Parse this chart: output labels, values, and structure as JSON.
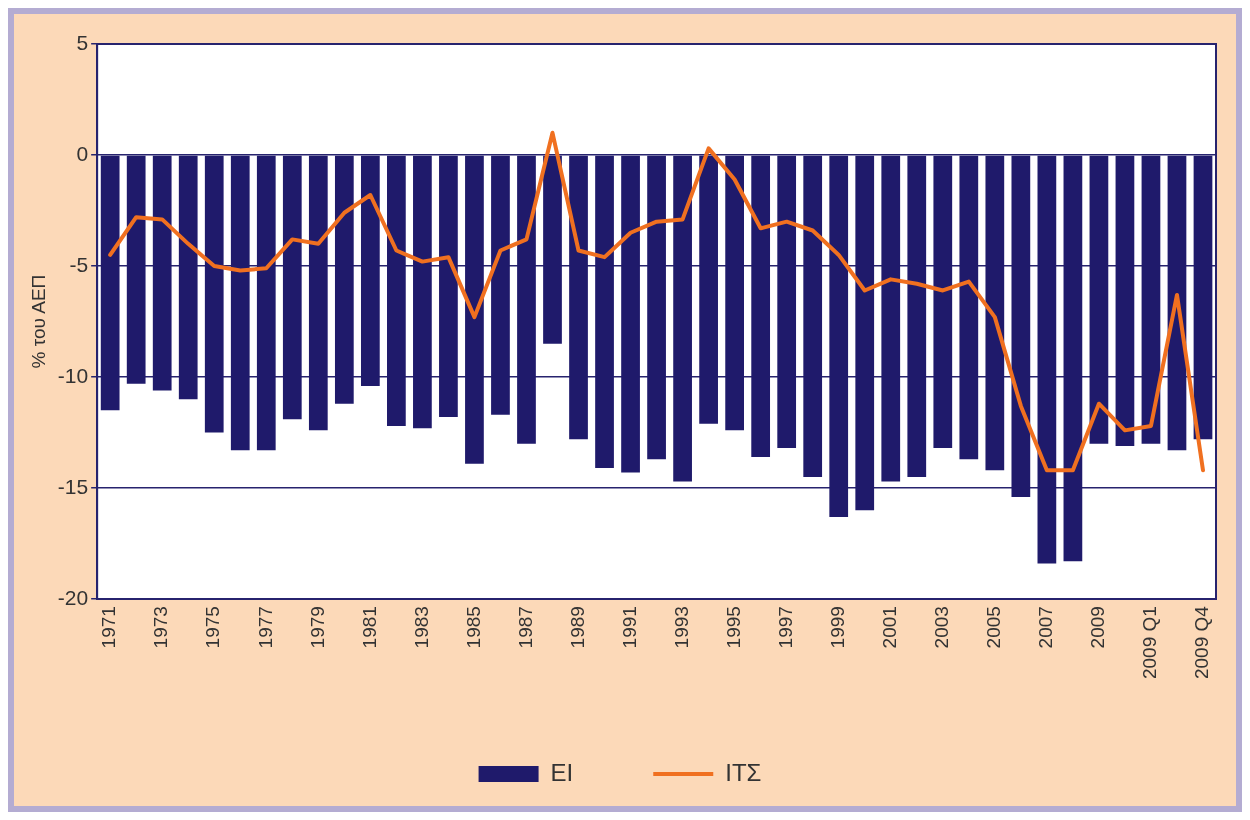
{
  "chart_data": {
    "type": "bar",
    "ylabel": "% του ΑΕΠ",
    "categories": [
      "1971",
      null,
      "1973",
      null,
      "1975",
      null,
      "1977",
      null,
      "1979",
      null,
      "1981",
      null,
      "1983",
      null,
      "1985",
      null,
      "1987",
      null,
      "1989",
      null,
      "1991",
      null,
      "1993",
      null,
      "1995",
      null,
      "1997",
      null,
      "1999",
      null,
      "2001",
      null,
      "2003",
      null,
      "2005",
      null,
      "2007",
      null,
      "2009",
      null,
      "2009 Q1",
      null,
      "2009 Q4"
    ],
    "series": [
      {
        "name": "ΕΙ",
        "color": "#1f1a6b",
        "values": [
          -11.5,
          -10.3,
          -10.6,
          -11.0,
          -12.5,
          -13.3,
          -13.3,
          -11.9,
          -12.4,
          -11.2,
          -10.4,
          -12.2,
          -12.3,
          -11.8,
          -13.9,
          -11.7,
          -13.0,
          -8.5,
          -12.8,
          -14.1,
          -14.3,
          -13.7,
          -14.7,
          -12.1,
          -12.4,
          -13.6,
          -13.2,
          -14.5,
          -16.3,
          -16.0,
          -14.7,
          -14.5,
          -13.2,
          -13.7,
          -14.2,
          -15.4,
          -18.4,
          -18.3,
          -13.0,
          -13.1,
          -13.0,
          -13.3,
          -12.8
        ]
      },
      {
        "name": "ΙΤΣ",
        "type": "line",
        "color": "#f07020",
        "values": [
          -4.5,
          -2.8,
          -2.9,
          -4.0,
          -5.0,
          -5.2,
          -5.1,
          -3.8,
          -4.0,
          -2.6,
          -1.8,
          -4.3,
          -4.8,
          -4.6,
          -7.3,
          -4.3,
          -3.8,
          1.0,
          -4.3,
          -4.6,
          -3.5,
          -3.0,
          -2.9,
          0.3,
          -1.1,
          -3.3,
          -3.0,
          -3.4,
          -4.5,
          -6.1,
          -5.6,
          -5.8,
          -6.1,
          -5.7,
          -7.3,
          -11.3,
          -14.2,
          -14.2,
          -11.2,
          -12.4,
          -12.2,
          -6.3,
          -14.2
        ]
      }
    ],
    "ylim": [
      -20,
      5
    ],
    "yticks": [
      5,
      0,
      -5,
      -10,
      -15,
      -20
    ],
    "grid": "y",
    "legend": "bottom",
    "marker": "none",
    "line_style": "solid"
  }
}
